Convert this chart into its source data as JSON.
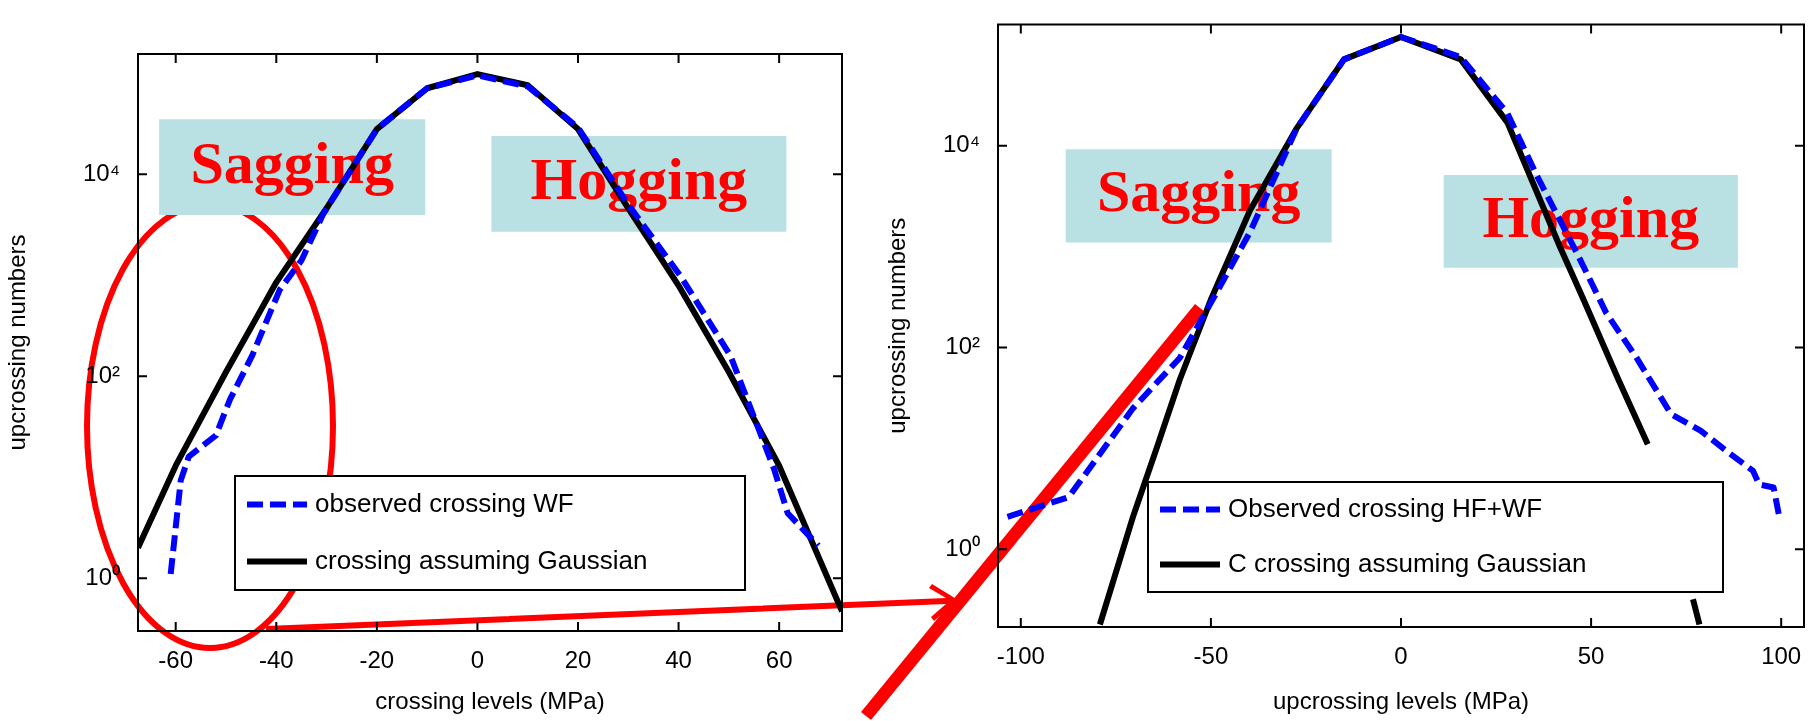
{
  "chart_data": [
    {
      "type": "line",
      "xlabel": "crossing levels (MPa)",
      "ylabel": "upcrossing numbers",
      "log": "y",
      "grid": false,
      "legend": "bottom",
      "line_style": "solid",
      "xlim": [
        -67.5,
        72.5
      ],
      "xticks": [
        -60,
        -40,
        -20,
        0,
        20,
        40,
        60
      ],
      "ylim": [
        0.32,
        155000
      ],
      "yticks": [
        {
          "value": 1,
          "label": "10⁰"
        },
        {
          "value": 100,
          "label": "10²"
        },
        {
          "value": 10000,
          "label": "10⁴"
        }
      ],
      "annotations": [
        "Sagging",
        "Hogging"
      ],
      "series": [
        {
          "name": "observed crossing WF",
          "color": "#0000ff",
          "line_style": "dashed",
          "x": [
            -61,
            -59,
            -57.4,
            -52,
            -49.2,
            -44.8,
            -39.3,
            -35,
            -30.6,
            -20,
            -10,
            0,
            10,
            20,
            30,
            40.4,
            50.3,
            59,
            61.7,
            67.8
          ],
          "values": [
            1.1,
            9.3,
            16,
            26,
            59,
            160,
            720,
            1400,
            4100,
            28000,
            71000,
            95000,
            74000,
            29000,
            5000,
            980,
            160,
            12,
            4.4,
            2.1
          ]
        },
        {
          "name": "crossing assuming Gaussian",
          "color": "#000000",
          "x": [
            -67.5,
            -60,
            -50,
            -40,
            -30,
            -20,
            -10,
            0,
            10,
            20,
            30,
            40,
            50,
            60,
            72.5
          ],
          "values": [
            2.0,
            13,
            110,
            850,
            4600,
            28000,
            71000,
            98000,
            76000,
            28000,
            4600,
            790,
            110,
            13,
            0.47
          ]
        }
      ]
    },
    {
      "type": "line",
      "xlabel": "upcrossing levels (MPa)",
      "ylabel": "upcrossing numbers",
      "log": "y",
      "grid": false,
      "legend": "bottom right",
      "line_style": "solid",
      "xlim": [
        -106,
        106
      ],
      "xticks": [
        -100,
        -50,
        0,
        50,
        100
      ],
      "ylim": [
        0.17,
        160000
      ],
      "yticks": [
        {
          "value": 1,
          "label": "10⁰"
        },
        {
          "value": 100,
          "label": "10²"
        },
        {
          "value": 10000,
          "label": "10⁴"
        }
      ],
      "annotations": [
        "Sagging",
        "Hogging"
      ],
      "series": [
        {
          "name": "Observed crossing HF+WF",
          "color": "#0000ff",
          "line_style": "dashed",
          "x": [
            -103.5,
            -87.4,
            -70.5,
            -58.2,
            -48.9,
            -39.7,
            -27.4,
            -15,
            0,
            15.7,
            28,
            35.7,
            46.5,
            54,
            61.8,
            71,
            78.8,
            86.5,
            92.6,
            94.2,
            98,
            99.5
          ],
          "values": [
            2.1,
            3.3,
            25,
            79,
            330,
            1400,
            15000,
            72000,
            120000,
            76000,
            21000,
            5100,
            830,
            220,
            81,
            22,
            15,
            8.9,
            6.0,
            4.4,
            4.1,
            2.1
          ]
        },
        {
          "name": "C crossing assuming Gaussian",
          "color": "#000000",
          "x": [
            -79.2,
            -70.5,
            -64.3,
            -58.2,
            -50,
            -39.7,
            -27.4,
            -15,
            0,
            15.7,
            28,
            41.8,
            48,
            57.2,
            64.9,
            72.6,
            76.8,
            78.5
          ],
          "values": [
            0.18,
            2.1,
            10,
            48,
            300,
            2300,
            15000,
            72000,
            120000,
            72000,
            17000,
            1000,
            300,
            48,
            11,
            null,
            0.32,
            0.18
          ]
        }
      ]
    }
  ]
}
